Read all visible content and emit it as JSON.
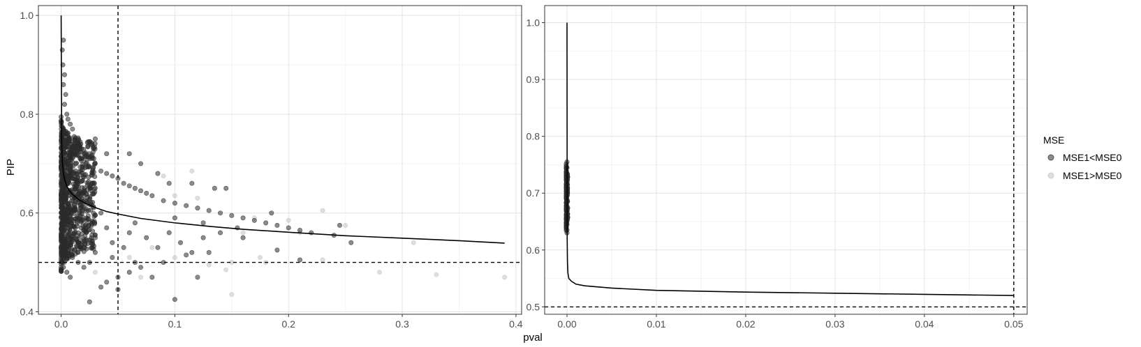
{
  "figure": {
    "xlabel": "pval",
    "ylabel": "PIP"
  },
  "legend": {
    "title": "MSE",
    "items": [
      {
        "label": "MSE1<MSE0",
        "color": "#2b2b2b",
        "opacity": 0.55
      },
      {
        "label": "MSE1>MSE0",
        "color": "#c8c8c8",
        "opacity": 0.6
      }
    ]
  },
  "chart_data": [
    {
      "type": "scatter",
      "panel": "left",
      "xlim": [
        -0.02,
        0.405
      ],
      "ylim": [
        0.395,
        1.02
      ],
      "x_ticks": [
        0.0,
        0.1,
        0.2,
        0.3,
        0.4
      ],
      "x_tick_labels": [
        "0.0",
        "0.1",
        "0.2",
        "0.3",
        "0.4"
      ],
      "y_ticks": [
        0.4,
        0.6,
        0.8,
        1.0
      ],
      "y_tick_labels": [
        "0.4",
        "0.6",
        "0.8",
        "1.0"
      ],
      "grid": true,
      "reference_lines": {
        "vline_x": 0.05,
        "hline_y": 0.5
      },
      "curve": {
        "x": [
          0.0,
          0.0005,
          0.001,
          0.002,
          0.003,
          0.005,
          0.007,
          0.01,
          0.015,
          0.02,
          0.03,
          0.04,
          0.05,
          0.07,
          0.1,
          0.13,
          0.16,
          0.2,
          0.25,
          0.3,
          0.35,
          0.39
        ],
        "y": [
          1.0,
          0.74,
          0.705,
          0.68,
          0.668,
          0.655,
          0.646,
          0.638,
          0.628,
          0.621,
          0.611,
          0.603,
          0.598,
          0.589,
          0.58,
          0.573,
          0.567,
          0.561,
          0.554,
          0.549,
          0.544,
          0.539
        ]
      },
      "series": [
        {
          "name": "MSE1<MSE0",
          "points": [
            [
              0.002,
              0.95
            ],
            [
              0.001,
              0.93
            ],
            [
              0.0015,
              0.9
            ],
            [
              0.003,
              0.88
            ],
            [
              0.002,
              0.86
            ],
            [
              0.004,
              0.84
            ],
            [
              0.003,
              0.82
            ],
            [
              0.005,
              0.8
            ],
            [
              0.006,
              0.79
            ],
            [
              0.008,
              0.78
            ],
            [
              0.01,
              0.77
            ],
            [
              0.004,
              0.76
            ],
            [
              0.012,
              0.75
            ],
            [
              0.015,
              0.74
            ],
            [
              0.018,
              0.73
            ],
            [
              0.02,
              0.72
            ],
            [
              0.022,
              0.715
            ],
            [
              0.025,
              0.71
            ],
            [
              0.03,
              0.7
            ],
            [
              0.028,
              0.69
            ],
            [
              0.035,
              0.685
            ],
            [
              0.04,
              0.68
            ],
            [
              0.045,
              0.675
            ],
            [
              0.05,
              0.67
            ],
            [
              0.055,
              0.66
            ],
            [
              0.06,
              0.655
            ],
            [
              0.065,
              0.65
            ],
            [
              0.07,
              0.645
            ],
            [
              0.075,
              0.64
            ],
            [
              0.08,
              0.635
            ],
            [
              0.09,
              0.625
            ],
            [
              0.1,
              0.62
            ],
            [
              0.11,
              0.615
            ],
            [
              0.12,
              0.61
            ],
            [
              0.13,
              0.605
            ],
            [
              0.14,
              0.6
            ],
            [
              0.15,
              0.595
            ],
            [
              0.16,
              0.59
            ],
            [
              0.17,
              0.585
            ],
            [
              0.18,
              0.58
            ],
            [
              0.19,
              0.575
            ],
            [
              0.2,
              0.57
            ],
            [
              0.21,
              0.565
            ],
            [
              0.22,
              0.56
            ],
            [
              0.24,
              0.555
            ],
            [
              0.255,
              0.54
            ],
            [
              0.245,
              0.575
            ],
            [
              0.03,
              0.75
            ],
            [
              0.04,
              0.72
            ],
            [
              0.06,
              0.72
            ],
            [
              0.07,
              0.7
            ],
            [
              0.085,
              0.68
            ],
            [
              0.095,
              0.66
            ],
            [
              0.115,
              0.66
            ],
            [
              0.135,
              0.65
            ],
            [
              0.145,
              0.65
            ],
            [
              0.1,
              0.59
            ],
            [
              0.125,
              0.58
            ],
            [
              0.155,
              0.57
            ],
            [
              0.185,
              0.6
            ],
            [
              0.21,
              0.505
            ],
            [
              0.19,
              0.525
            ],
            [
              0.13,
              0.52
            ],
            [
              0.11,
              0.515
            ],
            [
              0.09,
              0.5
            ],
            [
              0.07,
              0.49
            ],
            [
              0.06,
              0.48
            ],
            [
              0.05,
              0.47
            ],
            [
              0.04,
              0.46
            ],
            [
              0.035,
              0.45
            ],
            [
              0.025,
              0.42
            ],
            [
              0.05,
              0.445
            ],
            [
              0.1,
              0.425
            ],
            [
              0.12,
              0.47
            ],
            [
              0.08,
              0.47
            ],
            [
              0.065,
              0.5
            ],
            [
              0.045,
              0.51
            ],
            [
              0.03,
              0.52
            ],
            [
              0.02,
              0.53
            ],
            [
              0.015,
              0.54
            ],
            [
              0.012,
              0.56
            ],
            [
              0.009,
              0.58
            ],
            [
              0.007,
              0.6
            ],
            [
              0.006,
              0.62
            ],
            [
              0.004,
              0.64
            ],
            [
              0.003,
              0.66
            ],
            [
              0.002,
              0.68
            ],
            [
              0.001,
              0.7
            ],
            [
              0.0005,
              0.72
            ],
            [
              0.001,
              0.62
            ],
            [
              0.002,
              0.58
            ],
            [
              0.001,
              0.55
            ],
            [
              0.003,
              0.52
            ],
            [
              0.001,
              0.5
            ],
            [
              0.002,
              0.49
            ],
            [
              0.005,
              0.48
            ],
            [
              0.008,
              0.47
            ],
            [
              0.01,
              0.51
            ],
            [
              0.015,
              0.5
            ],
            [
              0.02,
              0.49
            ],
            [
              0.025,
              0.5
            ],
            [
              0.03,
              0.55
            ],
            [
              0.035,
              0.6
            ],
            [
              0.04,
              0.57
            ],
            [
              0.045,
              0.54
            ],
            [
              0.055,
              0.53
            ],
            [
              0.06,
              0.56
            ],
            [
              0.065,
              0.58
            ],
            [
              0.075,
              0.55
            ],
            [
              0.085,
              0.53
            ],
            [
              0.095,
              0.56
            ],
            [
              0.105,
              0.54
            ],
            [
              0.115,
              0.52
            ],
            [
              0.125,
              0.55
            ],
            [
              0.14,
              0.56
            ],
            [
              0.16,
              0.55
            ]
          ]
        },
        {
          "name": "MSE1>MSE0",
          "points": [
            [
              0.09,
              0.675
            ],
            [
              0.115,
              0.685
            ],
            [
              0.1,
              0.635
            ],
            [
              0.12,
              0.63
            ],
            [
              0.2,
              0.585
            ],
            [
              0.23,
              0.605
            ],
            [
              0.25,
              0.575
            ],
            [
              0.16,
              0.56
            ],
            [
              0.15,
              0.5
            ],
            [
              0.175,
              0.51
            ],
            [
              0.145,
              0.485
            ],
            [
              0.15,
              0.435
            ],
            [
              0.1,
              0.51
            ],
            [
              0.28,
              0.48
            ],
            [
              0.33,
              0.475
            ],
            [
              0.39,
              0.47
            ],
            [
              0.31,
              0.54
            ],
            [
              0.23,
              0.505
            ],
            [
              0.13,
              0.495
            ],
            [
              0.07,
              0.47
            ],
            [
              0.03,
              0.48
            ],
            [
              0.06,
              0.51
            ],
            [
              0.08,
              0.53
            ],
            [
              0.17,
              0.59
            ],
            [
              0.21,
              0.56
            ],
            [
              0.18,
              0.5
            ]
          ]
        }
      ],
      "jitter_cluster": {
        "series": "MSE1<MSE0",
        "x_range": [
          0.0,
          0.03
        ],
        "y_range": [
          0.47,
          0.8
        ],
        "count": 900,
        "seed": 11
      }
    },
    {
      "type": "scatter",
      "panel": "right",
      "xlim": [
        -0.0025,
        0.0515
      ],
      "ylim": [
        0.487,
        1.03
      ],
      "x_ticks": [
        0.0,
        0.01,
        0.02,
        0.03,
        0.04,
        0.05
      ],
      "x_tick_labels": [
        "0.00",
        "0.01",
        "0.02",
        "0.03",
        "0.04",
        "0.05"
      ],
      "y_ticks": [
        0.5,
        0.6,
        0.7,
        0.8,
        0.9,
        1.0
      ],
      "y_tick_labels": [
        "0.5",
        "0.6",
        "0.7",
        "0.8",
        "0.9",
        "1.0"
      ],
      "grid": true,
      "reference_lines": {
        "vline_x": 0.05,
        "hline_y": 0.5
      },
      "curve": {
        "x": [
          0.0,
          2e-05,
          5e-05,
          0.0001,
          0.0002,
          0.0005,
          0.001,
          0.002,
          0.005,
          0.01,
          0.02,
          0.03,
          0.04,
          0.05
        ],
        "y": [
          1.0,
          0.62,
          0.58,
          0.56,
          0.55,
          0.545,
          0.54,
          0.537,
          0.533,
          0.529,
          0.526,
          0.524,
          0.522,
          0.52
        ]
      },
      "series": [
        {
          "name": "MSE1<MSE0",
          "points": [
            [
              0.0,
              0.755
            ],
            [
              0.0,
              0.745
            ],
            [
              0.0,
              0.735
            ],
            [
              0.0,
              0.725
            ],
            [
              0.0,
              0.715
            ],
            [
              0.0,
              0.705
            ],
            [
              0.0,
              0.695
            ],
            [
              0.0,
              0.685
            ],
            [
              0.0,
              0.675
            ],
            [
              0.0,
              0.665
            ],
            [
              0.0,
              0.655
            ],
            [
              0.0,
              0.645
            ],
            [
              0.0,
              0.635
            ],
            [
              0.0,
              0.63
            ]
          ]
        }
      ],
      "jitter_cluster": {
        "series": "MSE1<MSE0",
        "x_range": [
          -8e-05,
          8e-05
        ],
        "y_range": [
          0.63,
          0.755
        ],
        "count": 220,
        "seed": 23
      }
    }
  ]
}
